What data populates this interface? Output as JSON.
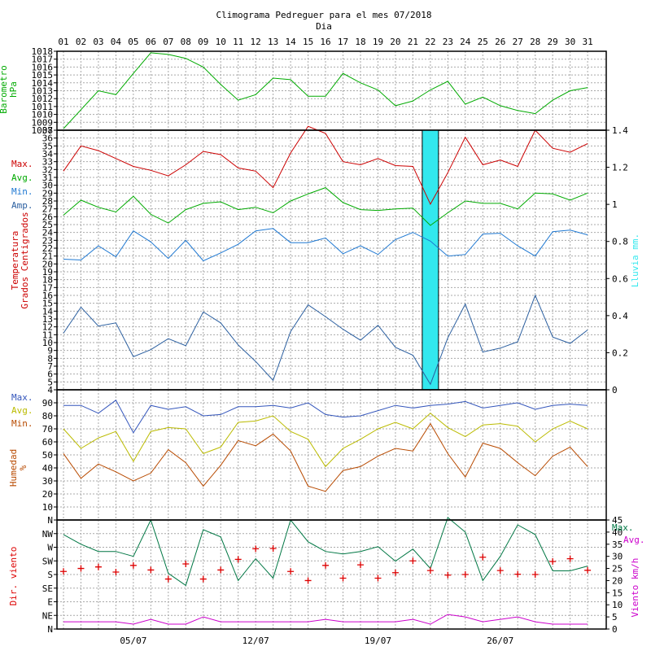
{
  "title": "Climograma Pedreguer para el mes 07/2018",
  "xaxis_title": "Dia",
  "days": [
    "01",
    "02",
    "03",
    "04",
    "05",
    "06",
    "07",
    "08",
    "09",
    "10",
    "11",
    "12",
    "13",
    "14",
    "15",
    "16",
    "17",
    "18",
    "19",
    "20",
    "21",
    "22",
    "23",
    "24",
    "25",
    "26",
    "27",
    "28",
    "29",
    "30",
    "31"
  ],
  "week_labels": [
    {
      "day": 5,
      "label": "05/07"
    },
    {
      "day": 12,
      "label": "12/07"
    },
    {
      "day": 19,
      "label": "19/07"
    },
    {
      "day": 26,
      "label": "26/07"
    }
  ],
  "colors": {
    "pressure": "#00aa00",
    "max": "#cc0000",
    "avg": "#00aa00",
    "min": "#1e78d2",
    "amp": "#2b5fa0",
    "rain": "#33e8ee",
    "hum_max": "#3355bb",
    "hum_avg": "#bbbb00",
    "hum_min": "#b84a00",
    "wind_dir": "#dd0000",
    "wind_max": "#007744",
    "wind_avg": "#cc00cc"
  },
  "chart_data": [
    {
      "type": "line",
      "id": "pressure",
      "ylabel": [
        "Barometro",
        "hPa"
      ],
      "ylim": [
        1008,
        1018
      ],
      "yticks": [
        1008,
        1009,
        1010,
        1011,
        1012,
        1013,
        1014,
        1015,
        1016,
        1017,
        1018
      ],
      "grid": true,
      "series": [
        {
          "name": "",
          "values": [
            1008.2,
            1010.6,
            1013.0,
            1012.5,
            1015.2,
            1017.8,
            1017.6,
            1017.1,
            1016.0,
            1013.8,
            1011.8,
            1012.5,
            1014.6,
            1014.4,
            1012.3,
            1012.3,
            1015.2,
            1014.0,
            1013.1,
            1011.1,
            1011.7,
            1013.1,
            1014.2,
            1011.3,
            1012.2,
            1011.1,
            1010.5,
            1010.1,
            1011.8,
            1013.0,
            1013.4
          ]
        }
      ]
    },
    {
      "type": "line",
      "id": "temperature",
      "ylabel": [
        "Temperatura",
        "Grados Centigrados"
      ],
      "ylim": [
        4,
        37
      ],
      "yticks": [
        4,
        5,
        6,
        7,
        8,
        9,
        10,
        11,
        12,
        13,
        14,
        15,
        16,
        17,
        18,
        19,
        20,
        21,
        22,
        23,
        24,
        25,
        26,
        27,
        28,
        29,
        30,
        31,
        32,
        33,
        34,
        35,
        36,
        37
      ],
      "y2label": "Lluvia mm.",
      "y2lim": [
        0,
        1.4
      ],
      "y2ticks": [
        "0",
        "0.2",
        "0.4",
        "0.6",
        "0.8",
        "1",
        "1.2",
        "1.4"
      ],
      "legend": [
        "Max.",
        "Avg.",
        "Min.",
        "Amp."
      ],
      "grid": true,
      "series": [
        {
          "name": "Max.",
          "values": [
            31.8,
            35.0,
            34.4,
            33.4,
            32.4,
            31.9,
            31.2,
            32.6,
            34.3,
            33.9,
            32.2,
            31.8,
            29.7,
            34.1,
            37.5,
            36.6,
            33.0,
            32.6,
            33.4,
            32.5,
            32.4,
            27.6,
            31.6,
            36.1,
            32.6,
            33.2,
            32.4,
            37.0,
            34.7,
            34.2,
            35.3
          ]
        },
        {
          "name": "Avg.",
          "values": [
            26.2,
            28.1,
            27.2,
            26.6,
            28.6,
            26.3,
            25.2,
            26.9,
            27.7,
            27.9,
            26.9,
            27.2,
            26.5,
            28.0,
            28.9,
            29.7,
            27.8,
            26.9,
            26.8,
            27.0,
            27.1,
            24.9,
            26.5,
            28.0,
            27.7,
            27.7,
            27.0,
            29.0,
            28.9,
            28.1,
            29.0
          ]
        },
        {
          "name": "Min.",
          "values": [
            20.6,
            20.5,
            22.3,
            20.9,
            24.2,
            22.8,
            20.7,
            23.0,
            20.4,
            21.4,
            22.5,
            24.2,
            24.5,
            22.7,
            22.7,
            23.3,
            21.3,
            22.3,
            21.2,
            23.1,
            24.0,
            22.9,
            21.0,
            21.2,
            23.8,
            23.9,
            22.3,
            21.0,
            24.1,
            24.3,
            23.7
          ]
        },
        {
          "name": "Amp.",
          "values": [
            11.2,
            14.5,
            12.1,
            12.5,
            8.2,
            9.1,
            10.5,
            9.6,
            13.9,
            12.5,
            9.7,
            7.6,
            5.2,
            11.4,
            14.8,
            13.3,
            11.7,
            10.3,
            12.2,
            9.4,
            8.4,
            4.7,
            10.6,
            14.9,
            8.8,
            9.3,
            10.1,
            16.0,
            10.7,
            9.9,
            11.6
          ]
        }
      ],
      "rain": [
        {
          "day": 22,
          "value": 1.4
        }
      ]
    },
    {
      "type": "line",
      "id": "humidity",
      "ylabel": [
        "Humedad",
        "%"
      ],
      "ylim": [
        0,
        100
      ],
      "yticks": [
        10,
        20,
        30,
        40,
        50,
        60,
        70,
        80,
        90
      ],
      "legend": [
        "Max.",
        "Avg.",
        "Min."
      ],
      "grid": true,
      "series": [
        {
          "name": "Max.",
          "values": [
            88,
            88,
            82,
            92,
            67,
            88,
            85,
            87,
            80,
            81,
            87,
            87,
            88,
            86,
            90,
            81,
            79,
            80,
            84,
            88,
            86,
            88,
            89,
            91,
            86,
            88,
            90,
            85,
            88,
            89,
            88
          ]
        },
        {
          "name": "Avg.",
          "values": [
            70,
            55,
            63,
            68,
            45,
            68,
            71,
            70,
            51,
            56,
            75,
            76,
            80,
            68,
            62,
            41,
            55,
            62,
            70,
            75,
            70,
            82,
            71,
            64,
            73,
            74,
            72,
            60,
            70,
            76,
            70
          ]
        },
        {
          "name": "Min.",
          "values": [
            51,
            32,
            43,
            37,
            30,
            36,
            54,
            44,
            26,
            42,
            61,
            57,
            66,
            53,
            26,
            22,
            38,
            41,
            49,
            55,
            53,
            74,
            51,
            33,
            59,
            55,
            44,
            34,
            49,
            56,
            41
          ]
        }
      ]
    },
    {
      "type": "line",
      "id": "wind",
      "ylabel": "Dir. viento",
      "direction_ticks": [
        "N",
        "NE",
        "E",
        "SE",
        "S",
        "SW",
        "W",
        "NW",
        "N"
      ],
      "y2label": "Viento km/h",
      "y2lim": [
        0,
        45
      ],
      "y2ticks": [
        0,
        5,
        10,
        15,
        20,
        25,
        30,
        35,
        40,
        45
      ],
      "legend": [
        "Max.",
        "Avg."
      ],
      "grid": true,
      "series": [
        {
          "name": "Max.",
          "values": [
            39,
            35,
            32,
            32,
            30,
            45,
            23,
            18,
            41,
            38,
            20,
            29,
            21,
            45,
            36,
            32,
            31,
            32,
            34,
            28,
            33,
            25,
            46,
            40,
            20,
            30,
            43,
            39,
            24,
            24,
            26
          ]
        },
        {
          "name": "Avg.",
          "values": [
            3,
            3,
            3,
            3,
            2,
            4,
            2,
            2,
            5,
            3,
            3,
            3,
            3,
            3,
            3,
            4,
            3,
            3,
            3,
            3,
            4,
            2,
            6,
            5,
            3,
            4,
            5,
            3,
            2,
            2,
            2
          ]
        },
        {
          "name": "Dir.",
          "values": [
            190,
            200,
            205,
            188,
            210,
            195,
            165,
            215,
            165,
            195,
            230,
            265,
            266,
            190,
            160,
            210,
            168,
            212,
            168,
            186,
            225,
            193,
            178,
            180,
            237,
            193,
            181,
            180,
            223,
            232,
            194
          ]
        }
      ]
    }
  ]
}
